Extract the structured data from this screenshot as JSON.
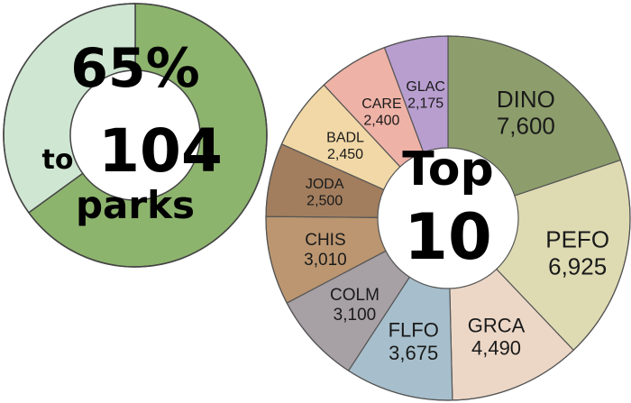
{
  "chart_data": [
    {
      "type": "pie",
      "variant": "donut",
      "center_text": {
        "line1": "65%",
        "line2_small": "to",
        "line2_big": "104",
        "line3": "parks"
      },
      "categories": [
        "",
        ""
      ],
      "values": [
        65,
        35
      ],
      "colors": [
        "#8db46d",
        "#cfe6d2"
      ]
    },
    {
      "type": "pie",
      "variant": "donut",
      "center_text": {
        "line1": "Top",
        "line2": "10"
      },
      "categories": [
        "DINO",
        "PEFO",
        "GRCA",
        "FLFO",
        "COLM",
        "CHIS",
        "JODA",
        "BADL",
        "CARE",
        "GLAC"
      ],
      "values": [
        7600,
        6925,
        4490,
        3675,
        3100,
        3010,
        2500,
        2450,
        2400,
        2175
      ],
      "value_labels": [
        "7,600",
        "6,925",
        "4,490",
        "3,675",
        "3,100",
        "3,010",
        "2,500",
        "2,450",
        "2,400",
        "2,175"
      ],
      "colors": [
        "#8d9e6c",
        "#dedbb3",
        "#ecd7c7",
        "#a7bfcc",
        "#a7a0a5",
        "#bb9670",
        "#a27e5e",
        "#f1d8a6",
        "#efb2a7",
        "#b89ecf"
      ]
    }
  ]
}
